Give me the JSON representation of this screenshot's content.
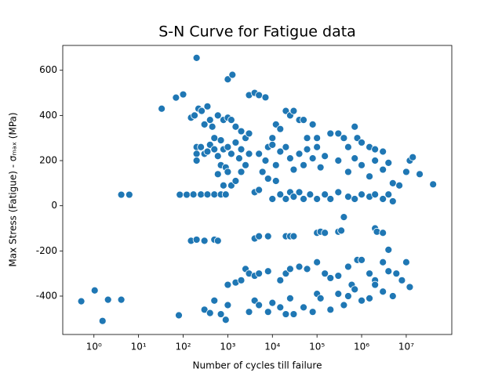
{
  "chart_data": {
    "type": "scatter",
    "title": "S-N Curve for Fatigue data",
    "x_label": "Number of cycles till failure",
    "y_label": "Max Stress (Fatigue) - σₘₐₓ (MPa)",
    "color": "#1f77b4",
    "log_x": true,
    "xlim": [
      0.2,
      105000000
    ],
    "ylim": [
      -570,
      710
    ],
    "xticks": [
      {
        "value": 1,
        "label": "10⁰"
      },
      {
        "value": 10,
        "label": "10¹"
      },
      {
        "value": 100,
        "label": "10²"
      },
      {
        "value": 1000,
        "label": "10³"
      },
      {
        "value": 10000,
        "label": "10⁴"
      },
      {
        "value": 100000,
        "label": "10⁵"
      },
      {
        "value": 1000000,
        "label": "10⁶"
      },
      {
        "value": 10000000,
        "label": "10⁷"
      }
    ],
    "yticks": [
      -400,
      -200,
      0,
      200,
      400,
      600
    ],
    "x": [
      0.52,
      1.04,
      1.56,
      2.07,
      4.1,
      4.1,
      6.2,
      33,
      69,
      100,
      81,
      84,
      120,
      200,
      1000,
      1270,
      150,
      180,
      220,
      260,
      300,
      350,
      400,
      450,
      500,
      600,
      700,
      800,
      1000,
      1200,
      1500,
      2000,
      2500,
      3000,
      200,
      200,
      200,
      250,
      300,
      350,
      400,
      500,
      600,
      700,
      800,
      900,
      1000,
      1200,
      1500,
      1800,
      2000,
      2500,
      3000,
      1000,
      800,
      1200,
      600,
      700,
      1500,
      170,
      250,
      350,
      500,
      700,
      900,
      3000,
      4000,
      5000,
      7000,
      2000,
      4000,
      5000,
      6000,
      8000,
      10000,
      12000,
      15000,
      20000,
      25000,
      30000,
      40000,
      50000,
      60000,
      80000,
      100000,
      5000,
      7000,
      10000,
      12000,
      15000,
      20000,
      25000,
      30000,
      40000,
      50000,
      60000,
      80000,
      100000,
      120000,
      150000,
      200000,
      8000,
      10000,
      12000,
      15000,
      20000,
      25000,
      30000,
      40000,
      50000,
      70000,
      100000,
      150000,
      200000,
      300000,
      400000,
      500000,
      700000,
      800000,
      1000000,
      1500000,
      2000000,
      3000000,
      300000,
      500000,
      700000,
      1000000,
      1500000,
      2000000,
      3000000,
      4000000,
      5000000,
      7000000,
      10000000,
      12000000,
      14000000,
      20000000,
      40000000,
      300000,
      500000,
      700000,
      1000000,
      1500000,
      2000000,
      3000000,
      5000000,
      4000000,
      400000,
      150,
      200,
      300,
      500,
      600,
      4000,
      5000,
      8000,
      20000,
      25000,
      30000,
      100000,
      120000,
      150000,
      300000,
      350000,
      2000000,
      2200000,
      3000000,
      4000000,
      1000,
      1500,
      2000,
      2500,
      3000,
      4000,
      5000,
      8000,
      15000,
      20000,
      25000,
      40000,
      60000,
      100000,
      150000,
      200000,
      300000,
      500000,
      600000,
      800000,
      1000000,
      1500000,
      2000000,
      3000000,
      4000000,
      6000000,
      8000000,
      10000000,
      12000000,
      300,
      400,
      500,
      700,
      900,
      1000,
      3000,
      4000,
      5000,
      8000,
      10000,
      15000,
      20000,
      25000,
      30000,
      50000,
      80000,
      100000,
      120000,
      200000,
      300000,
      400000,
      500000,
      700000,
      1000000,
      1500000,
      2000000,
      3000000,
      5000000,
      80
    ],
    "values": [
      -423,
      -375,
      -510,
      -416,
      -416,
      49,
      49,
      430,
      479,
      493,
      -485,
      49,
      49,
      655,
      560,
      580,
      390,
      400,
      430,
      420,
      360,
      440,
      380,
      350,
      300,
      400,
      290,
      380,
      390,
      380,
      350,
      330,
      300,
      320,
      260,
      230,
      200,
      260,
      230,
      240,
      270,
      250,
      220,
      180,
      250,
      170,
      260,
      230,
      280,
      210,
      250,
      180,
      230,
      150,
      90,
      90,
      140,
      50,
      110,
      50,
      50,
      50,
      50,
      50,
      50,
      490,
      500,
      490,
      480,
      150,
      60,
      70,
      150,
      260,
      300,
      360,
      340,
      420,
      400,
      420,
      380,
      380,
      300,
      360,
      300,
      230,
      200,
      270,
      180,
      240,
      260,
      210,
      160,
      230,
      180,
      250,
      210,
      260,
      170,
      220,
      320,
      120,
      30,
      110,
      50,
      30,
      60,
      40,
      60,
      30,
      50,
      30,
      50,
      30,
      320,
      300,
      260,
      350,
      300,
      280,
      260,
      250,
      240,
      200,
      150,
      210,
      180,
      130,
      200,
      160,
      190,
      100,
      90,
      150,
      200,
      215,
      140,
      95,
      60,
      40,
      30,
      50,
      40,
      50,
      30,
      20,
      50,
      -50,
      -155,
      -150,
      -155,
      -150,
      -155,
      -145,
      -135,
      -135,
      -135,
      -135,
      -135,
      -120,
      -115,
      -120,
      -115,
      -110,
      -100,
      -115,
      -120,
      -195,
      -350,
      -340,
      -330,
      -280,
      -300,
      -310,
      -300,
      -290,
      -330,
      -300,
      -280,
      -270,
      -280,
      -250,
      -300,
      -320,
      -310,
      -270,
      -350,
      -240,
      -240,
      -300,
      -330,
      -250,
      -290,
      -300,
      -330,
      -250,
      -360,
      -460,
      -475,
      -420,
      -480,
      -505,
      -440,
      -470,
      -420,
      -440,
      -470,
      -430,
      -450,
      -480,
      -410,
      -480,
      -450,
      -470,
      -390,
      -410,
      -460,
      -390,
      -440,
      -400,
      -370,
      -420,
      -410,
      -350,
      -380,
      -400,
      -485
    ]
  }
}
